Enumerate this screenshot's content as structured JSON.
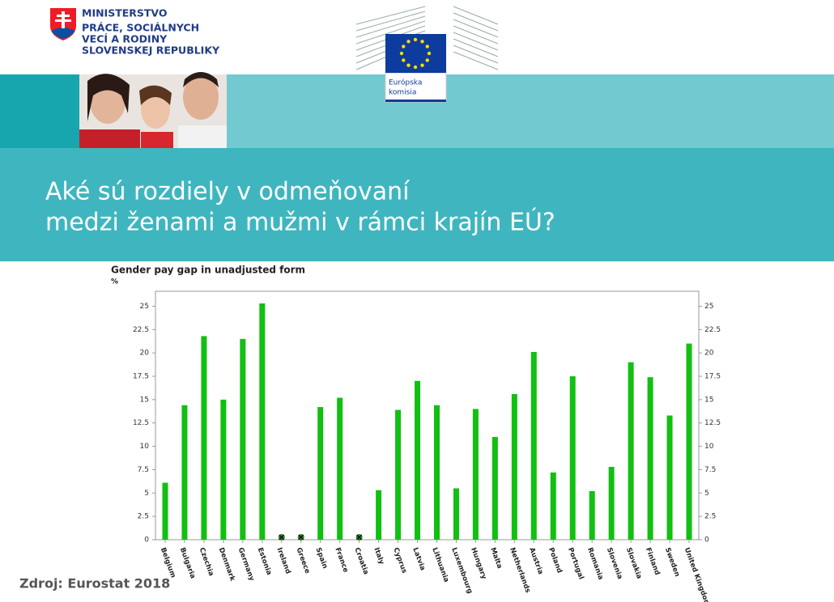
{
  "header": {
    "ministry": [
      "MINISTERSTVO",
      "PRÁCE, SOCIÁLNYCH",
      "VECÍ A RODINY",
      "SLOVENSKEJ REPUBLIKY"
    ],
    "commission": [
      "Európska",
      "komisia"
    ]
  },
  "slide_title": [
    "Aké sú rozdiely v odmeňovaní",
    "medzi ženami a mužmi v rámci krajín EÚ?"
  ],
  "source": "Zdroj: Eurostat 2018",
  "chart_data": {
    "type": "bar",
    "title": "Gender pay gap in unadjusted form",
    "y_label": "%",
    "categories": [
      "Belgium",
      "Bulgaria",
      "Czechia",
      "Denmark",
      "Germany",
      "Estonia",
      "Ireland",
      "Greece",
      "Spain",
      "France",
      "Croatia",
      "Italy",
      "Cyprus",
      "Latvia",
      "Lithuania",
      "Luxembourg",
      "Hungary",
      "Malta",
      "Netherlands",
      "Austria",
      "Poland",
      "Portugal",
      "Romania",
      "Slovenia",
      "Slovakia",
      "Finland",
      "Sweden",
      "United Kingdom"
    ],
    "values": [
      6.1,
      14.4,
      21.8,
      15.0,
      21.5,
      25.3,
      null,
      null,
      14.2,
      15.2,
      null,
      5.3,
      13.9,
      17.0,
      14.4,
      5.5,
      14.0,
      11.0,
      15.6,
      20.1,
      7.2,
      17.5,
      5.2,
      7.8,
      19.0,
      17.4,
      13.3,
      21.0
    ],
    "color": "#11c011",
    "ylim": [
      0,
      26.6
    ],
    "yticks": [
      0,
      2.5,
      5,
      7.5,
      10,
      12.5,
      15,
      17.5,
      20,
      22.5,
      25
    ],
    "y2lim": [
      0,
      26.6
    ],
    "y2ticks": [
      0,
      2.5,
      5,
      7.5,
      10,
      12.5,
      15,
      17.5,
      20,
      22.5,
      25
    ]
  }
}
